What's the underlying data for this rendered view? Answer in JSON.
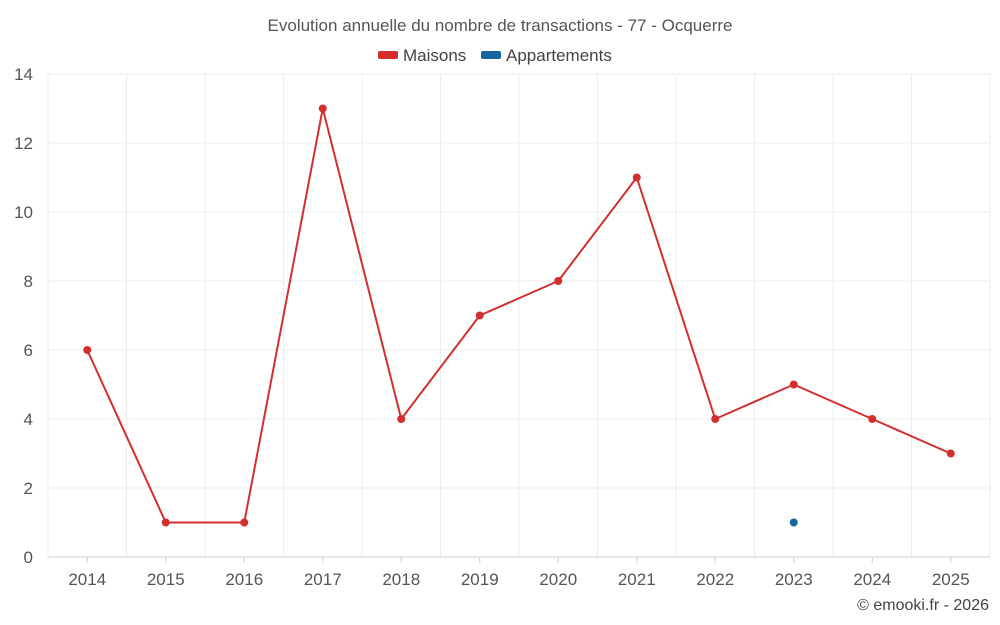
{
  "chart_data": {
    "type": "line",
    "title": "Evolution annuelle du nombre de transactions - 77 - Ocquerre",
    "categories": [
      "2014",
      "2015",
      "2016",
      "2017",
      "2018",
      "2019",
      "2020",
      "2021",
      "2022",
      "2023",
      "2024",
      "2025"
    ],
    "series": [
      {
        "name": "Maisons",
        "color": "#d32f2f",
        "values": [
          6,
          1,
          1,
          13,
          4,
          7,
          8,
          11,
          4,
          5,
          4,
          3
        ]
      },
      {
        "name": "Appartements",
        "color": "#1565a0",
        "values": [
          null,
          null,
          null,
          null,
          null,
          null,
          null,
          null,
          null,
          1,
          null,
          null
        ]
      }
    ],
    "ylim": [
      0,
      14
    ],
    "yticks": [
      0,
      2,
      4,
      6,
      8,
      10,
      12,
      14
    ],
    "xlabel": "",
    "ylabel": "",
    "grid": true,
    "legend_position": "top-center"
  },
  "credit": "© emooki.fr - 2026"
}
